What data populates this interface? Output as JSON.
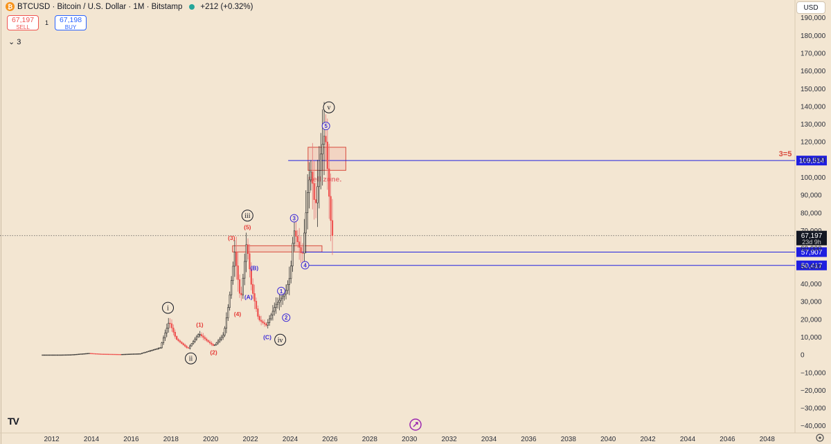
{
  "header": {
    "symbol_line": "BTCUSD · Bitcoin / U.S. Dollar · 1M · Bitstamp",
    "change": "+212 (+0.32%)",
    "logo_glyph": "₿"
  },
  "trade": {
    "sell_price": "67,197",
    "sell_label": "SELL",
    "spread": "1",
    "buy_price": "67,198",
    "buy_label": "BUY"
  },
  "indicators_toggle": "⌄ 3",
  "currency_button": "USD",
  "logo_text": "TV",
  "colors": {
    "background": "#f3e6d2",
    "up": "#26a69a",
    "down": "#ef5350",
    "wave_red": "#e53935",
    "wave_blue": "#3d2bd8",
    "level_line": "#1f1fe0"
  },
  "chart_data": {
    "type": "candlestick",
    "y_ticks": [
      190000,
      180000,
      170000,
      160000,
      150000,
      140000,
      130000,
      120000,
      110000,
      100000,
      90000,
      80000,
      70000,
      60000,
      50000,
      40000,
      30000,
      20000,
      10000,
      0,
      -10000,
      -20000,
      -30000,
      -40000
    ],
    "y_tick_labels": [
      "190,000",
      "180,000",
      "170,000",
      "160,000",
      "150,000",
      "140,000",
      "130,000",
      "120,000",
      "110,000",
      "100,000",
      "90,000",
      "80,000",
      "70,000",
      "60,000",
      "50,000",
      "40,000",
      "30,000",
      "20,000",
      "10,000",
      "0",
      "−10,000",
      "−20,000",
      "−30,000",
      "−40,000"
    ],
    "ylim": [
      -44000,
      200000
    ],
    "x_ticks": [
      2012,
      2014,
      2016,
      2018,
      2020,
      2022,
      2024,
      2026,
      2028,
      2030,
      2032,
      2034,
      2036,
      2038,
      2040,
      2042,
      2044,
      2046,
      2048
    ],
    "xlim": [
      2009.4,
      2049.4
    ],
    "price_path": [
      [
        2011.5,
        5
      ],
      [
        2012.5,
        12
      ],
      [
        2013.0,
        100
      ],
      [
        2013.9,
        900
      ],
      [
        2014.5,
        500
      ],
      [
        2015.5,
        300
      ],
      [
        2016.5,
        700
      ],
      [
        2017.5,
        4000
      ],
      [
        2017.95,
        19000
      ],
      [
        2018.3,
        9000
      ],
      [
        2018.9,
        3500
      ],
      [
        2019.45,
        12000
      ],
      [
        2019.9,
        7500
      ],
      [
        2020.2,
        5000
      ],
      [
        2020.7,
        11500
      ],
      [
        2020.95,
        29000
      ],
      [
        2021.25,
        58000
      ],
      [
        2021.55,
        30000
      ],
      [
        2021.85,
        64000
      ],
      [
        2022.1,
        38000
      ],
      [
        2022.45,
        20000
      ],
      [
        2022.85,
        16500
      ],
      [
        2023.3,
        28000
      ],
      [
        2023.8,
        35000
      ],
      [
        2024.05,
        45000
      ],
      [
        2024.22,
        71000
      ],
      [
        2024.65,
        55000
      ],
      [
        2024.95,
        96000
      ],
      [
        2025.1,
        104000
      ],
      [
        2025.3,
        82000
      ],
      [
        2025.6,
        115000
      ],
      [
        2025.8,
        126000
      ],
      [
        2025.9,
        108000
      ],
      [
        2026.05,
        80000
      ],
      [
        2026.15,
        67197
      ]
    ],
    "last_price": 67197,
    "last_price_label": "67,197",
    "countdown": "23d 9h",
    "levels": [
      {
        "value": 109514,
        "label": "109,514",
        "from": 2023.9
      },
      {
        "value": 57907,
        "label": "57,907",
        "from": 2024.5
      },
      {
        "value": 50417,
        "label": "50,417",
        "from": 2024.6
      }
    ],
    "projection_label": "3=5",
    "zones": [
      {
        "x0": 2024.9,
        "x1": 2026.8,
        "y0": 104000,
        "y1": 117000,
        "label": "Sell zone."
      },
      {
        "x0": 2021.1,
        "x1": 2025.6,
        "y0": 58000,
        "y1": 61500,
        "label": ""
      }
    ],
    "wave_labels": [
      {
        "text": "i",
        "x": 2017.85,
        "y": 26500,
        "style": "circle-black"
      },
      {
        "text": "ii",
        "x": 2019.0,
        "y": -2000,
        "style": "circle-black"
      },
      {
        "text": "iii",
        "x": 2021.85,
        "y": 78500,
        "style": "circle-black"
      },
      {
        "text": "iv",
        "x": 2023.5,
        "y": 8500,
        "style": "circle-black"
      },
      {
        "text": "v",
        "x": 2025.95,
        "y": 139500,
        "style": "circle-black"
      },
      {
        "text": "(1)",
        "x": 2019.45,
        "y": 17000,
        "style": "red"
      },
      {
        "text": "(2)",
        "x": 2020.15,
        "y": 1500,
        "style": "red"
      },
      {
        "text": "(3)",
        "x": 2021.05,
        "y": 66000,
        "style": "red"
      },
      {
        "text": "(4)",
        "x": 2021.35,
        "y": 23000,
        "style": "red"
      },
      {
        "text": "(5)",
        "x": 2021.85,
        "y": 72000,
        "style": "red"
      },
      {
        "text": "(A)",
        "x": 2021.9,
        "y": 32500,
        "style": "blue"
      },
      {
        "text": "(B)",
        "x": 2022.2,
        "y": 49000,
        "style": "blue"
      },
      {
        "text": "(C)",
        "x": 2022.85,
        "y": 10000,
        "style": "blue"
      },
      {
        "text": "1",
        "x": 2023.55,
        "y": 36000,
        "style": "circle-blue"
      },
      {
        "text": "2",
        "x": 2023.8,
        "y": 21000,
        "style": "circle-blue"
      },
      {
        "text": "3",
        "x": 2024.2,
        "y": 77000,
        "style": "circle-blue"
      },
      {
        "text": "4",
        "x": 2024.75,
        "y": 50500,
        "style": "circle-blue"
      },
      {
        "text": "5",
        "x": 2025.8,
        "y": 129000,
        "style": "circle-blue"
      }
    ]
  }
}
